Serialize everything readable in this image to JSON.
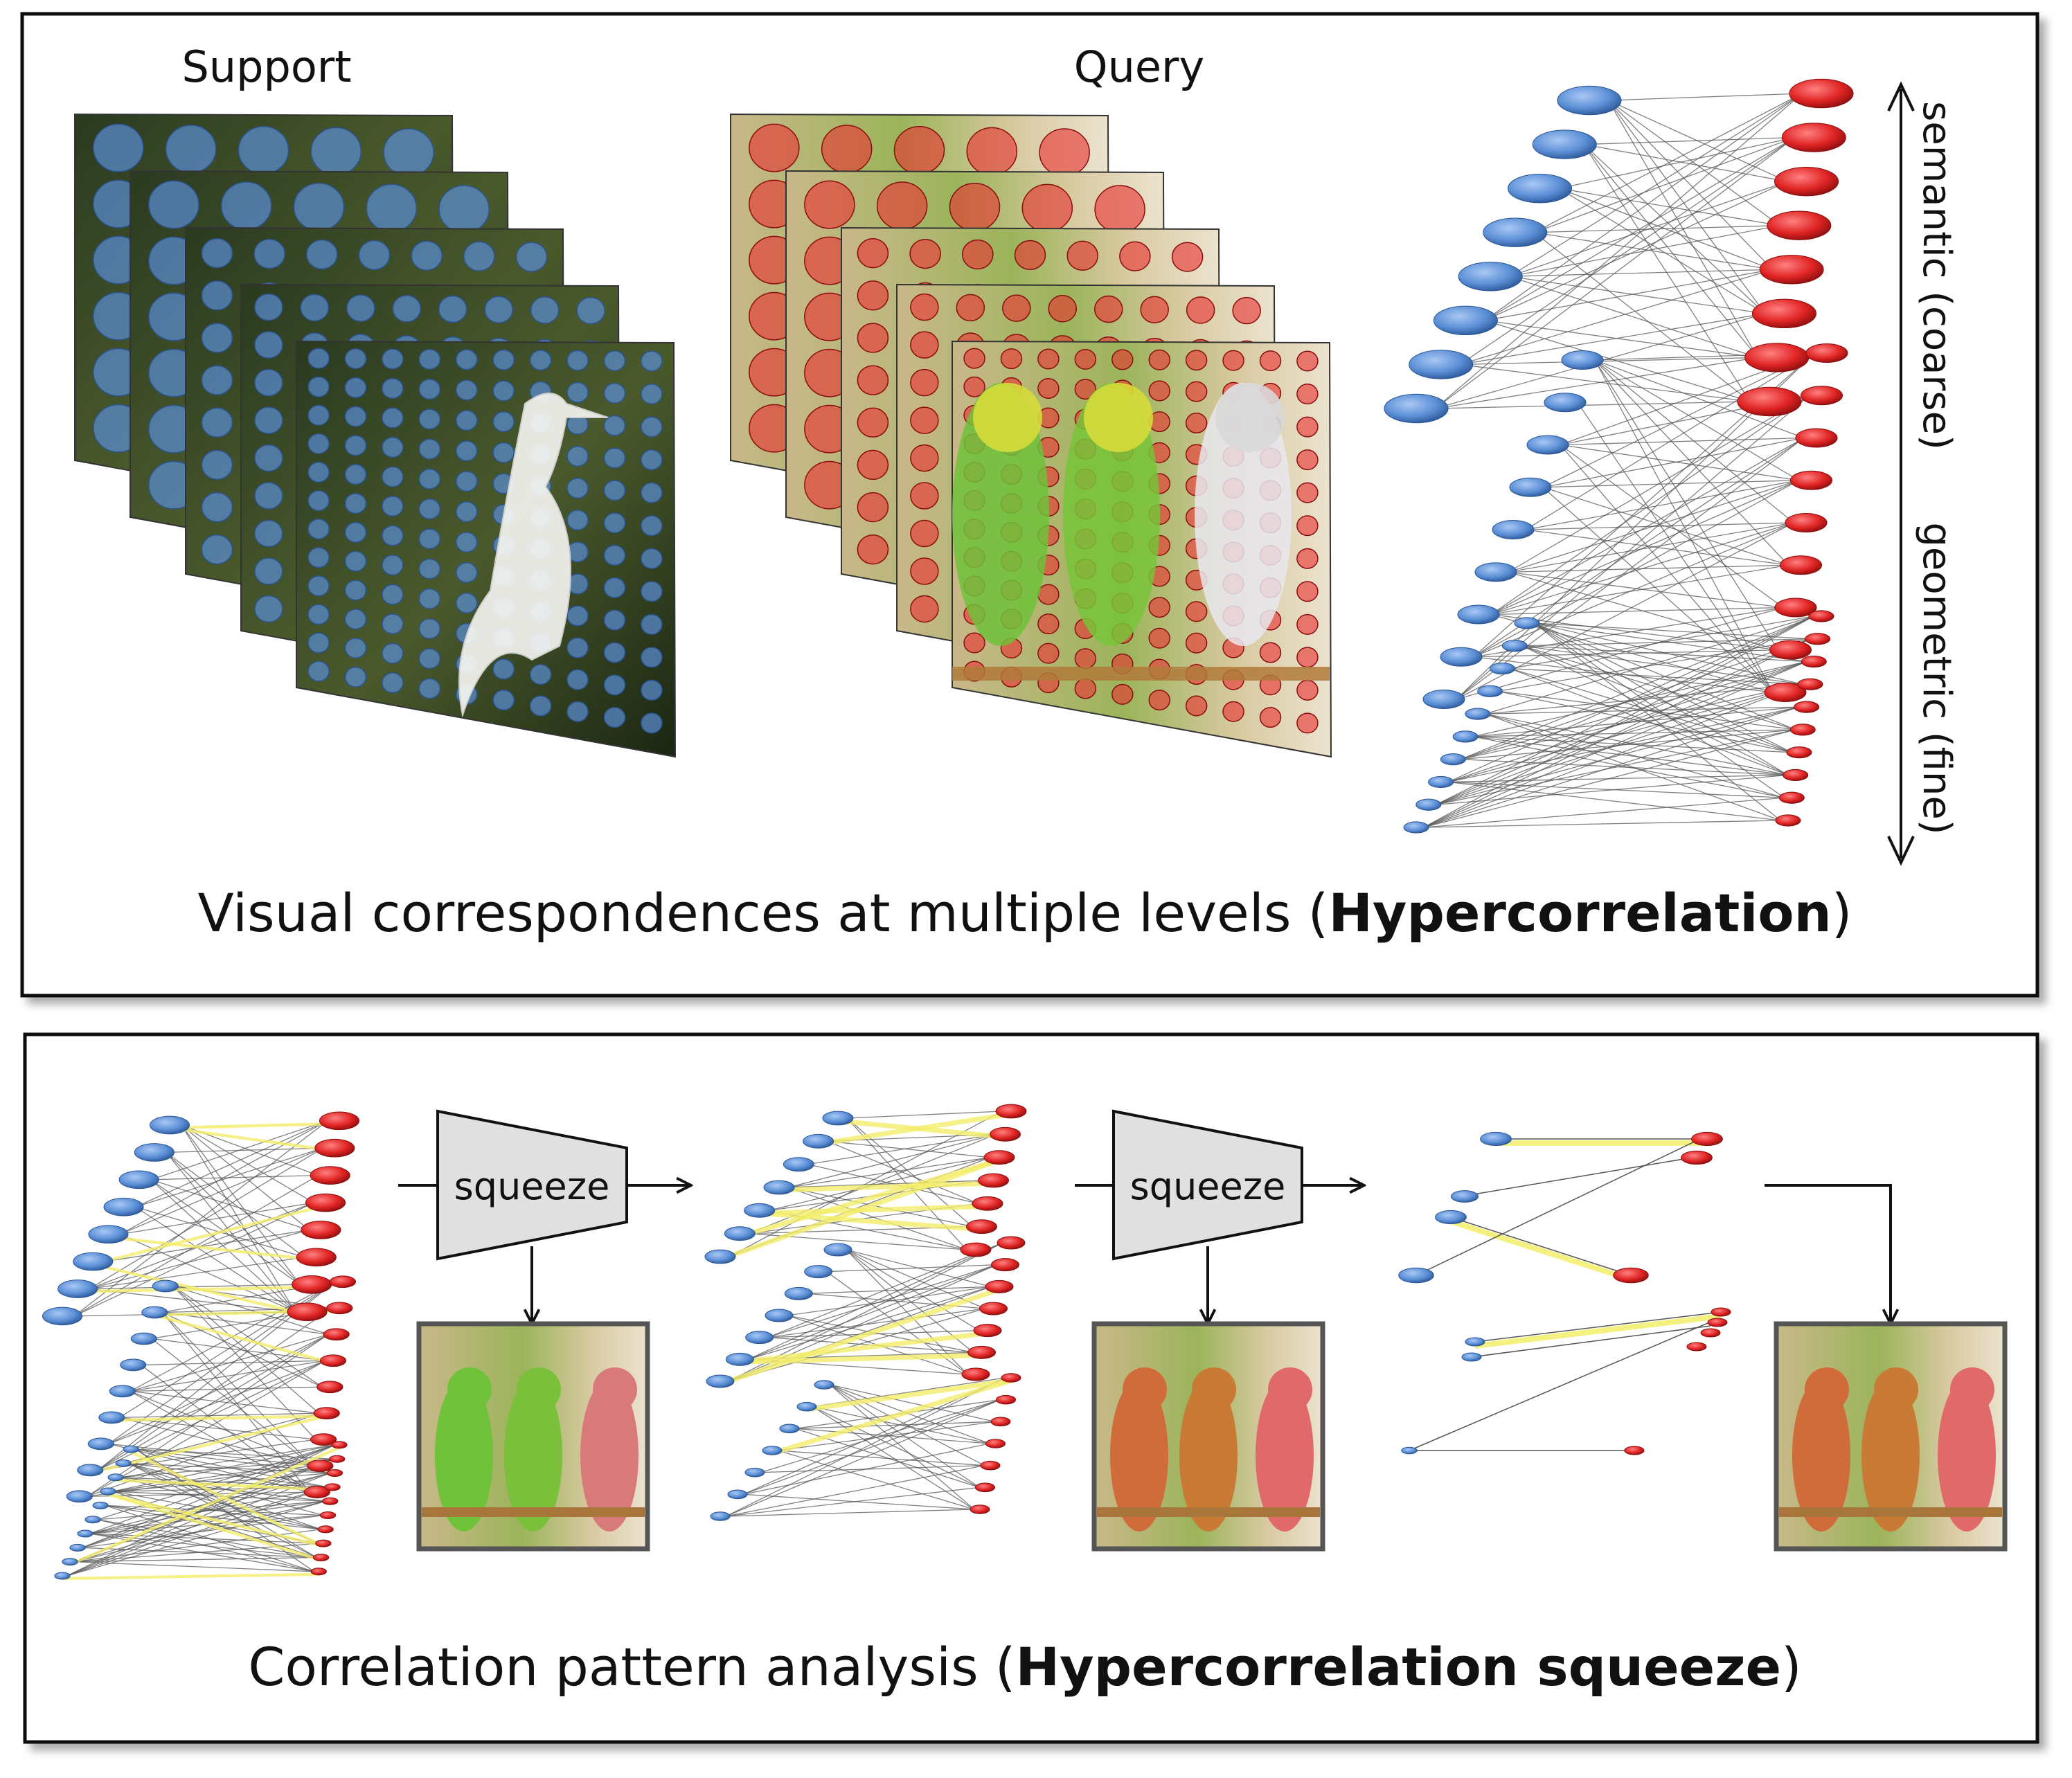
{
  "top_panel": {
    "support_label": "Support",
    "query_label": "Query",
    "axis_top_label": "semantic (coarse)",
    "axis_bottom_label": "geometric (fine)",
    "caption_prefix": "Visual correspondences at multiple levels (",
    "caption_bold": "Hypercorrelation",
    "caption_suffix": ")"
  },
  "bottom_panel": {
    "squeeze_labels": [
      "squeeze",
      "squeeze"
    ],
    "caption_prefix": "Correlation pattern analysis (",
    "caption_bold": "Hypercorrelation squeeze",
    "caption_suffix": ")"
  },
  "colors": {
    "support_node": "#5b8fd6",
    "query_node": "#e02424",
    "edge": "#555555",
    "highlight_edge": "#f2ee6a",
    "squeeze_fill": "#e0e0e0",
    "panel_border": "#111111"
  },
  "icons": {
    "support_images": "bird-photo-stack",
    "query_images": "parrot-photo-stack",
    "masks": "parrot-mask-image"
  }
}
